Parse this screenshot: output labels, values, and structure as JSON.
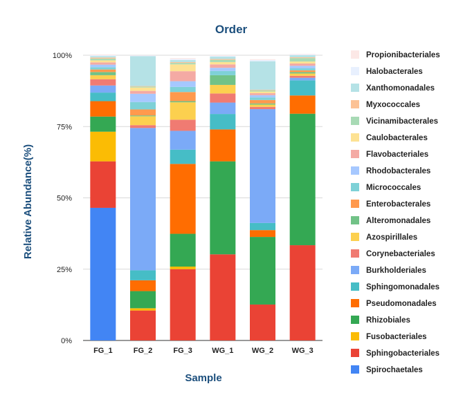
{
  "chart_data": {
    "type": "bar",
    "stacked": true,
    "title": "Order",
    "xlabel": "Sample",
    "ylabel": "Relative Abundance(%)",
    "ylim": [
      0,
      100
    ],
    "yticks": [
      "0%",
      "25%",
      "50%",
      "75%",
      "100%"
    ],
    "grid": true,
    "legend_position": "right",
    "categories": [
      "FG_1",
      "FG_2",
      "FG_3",
      "WG_1",
      "WG_2",
      "WG_3"
    ],
    "series": [
      {
        "name": "Spirochaetales",
        "color": "#4285f4",
        "values": [
          46.5,
          0,
          0,
          0,
          0,
          0
        ]
      },
      {
        "name": "Sphingobacteriales",
        "color": "#ea4335",
        "values": [
          16.3,
          10.5,
          25.0,
          30.2,
          12.6,
          33.4
        ]
      },
      {
        "name": "Fusobacteriales",
        "color": "#fbbc04",
        "values": [
          10.4,
          0.8,
          0.9,
          0,
          0,
          0
        ]
      },
      {
        "name": "Rhizobiales",
        "color": "#34a853",
        "values": [
          5.3,
          6.0,
          11.5,
          32.6,
          23.7,
          46.1
        ]
      },
      {
        "name": "Pseudomonadales",
        "color": "#ff6d01",
        "values": [
          5.4,
          3.8,
          24.5,
          11.2,
          2.4,
          6.4
        ]
      },
      {
        "name": "Sphingomonadales",
        "color": "#46bdc6",
        "values": [
          3.0,
          3.5,
          5.0,
          5.4,
          2.5,
          5.3
        ]
      },
      {
        "name": "Burkholderiales",
        "color": "#7baaf7",
        "values": [
          2.5,
          49.9,
          6.6,
          4.0,
          39.9,
          0.9
        ]
      },
      {
        "name": "Corynebacteriales",
        "color": "#f07b72",
        "values": [
          2.2,
          1.0,
          3.9,
          3.2,
          0.8,
          0.7
        ]
      },
      {
        "name": "Azospirillales",
        "color": "#fcd04f",
        "values": [
          1.4,
          3.1,
          6.1,
          3.0,
          0.8,
          0.8
        ]
      },
      {
        "name": "Alteromonadales",
        "color": "#71c287",
        "values": [
          1.1,
          0.3,
          0.4,
          3.4,
          0.4,
          0.5
        ]
      },
      {
        "name": "Enterobacterales",
        "color": "#ff994d",
        "values": [
          0.9,
          2.1,
          3.2,
          0,
          1.2,
          0.6
        ]
      },
      {
        "name": "Micrococcales",
        "color": "#7ed1d7",
        "values": [
          0.8,
          2.6,
          1.8,
          1.5,
          0.9,
          0.7
        ]
      },
      {
        "name": "Rhodobacterales",
        "color": "#a6c8ff",
        "values": [
          0.9,
          2.9,
          2.0,
          1.1,
          0.8,
          0.9
        ]
      },
      {
        "name": "Flavobacteriales",
        "color": "#f4aaa4",
        "values": [
          0.8,
          1.0,
          3.5,
          1.2,
          0.7,
          0.8
        ]
      },
      {
        "name": "Caulobacterales",
        "color": "#fde293",
        "values": [
          0.7,
          1.2,
          2.4,
          0.8,
          0.6,
          0.7
        ]
      },
      {
        "name": "Vicinamibacterales",
        "color": "#a8dab5",
        "values": [
          0.6,
          0.3,
          0.5,
          0.8,
          0.4,
          1.2
        ]
      },
      {
        "name": "Myxococcales",
        "color": "#fcc295",
        "values": [
          0.4,
          0.2,
          0.3,
          0.3,
          0.2,
          0.3
        ]
      },
      {
        "name": "Xanthomonadales",
        "color": "#b5e2e6",
        "values": [
          0.5,
          10.5,
          0.7,
          0.8,
          10.0,
          0.7
        ]
      },
      {
        "name": "Halobacterales",
        "color": "#e8f0fe",
        "values": [
          0.3,
          0.2,
          0.4,
          0.3,
          0.4,
          0.3
        ]
      },
      {
        "name": "Propionibacteriales",
        "color": "#fce8e6",
        "values": [
          0.3,
          0.1,
          0.3,
          0.2,
          0.3,
          0.2
        ]
      }
    ]
  }
}
